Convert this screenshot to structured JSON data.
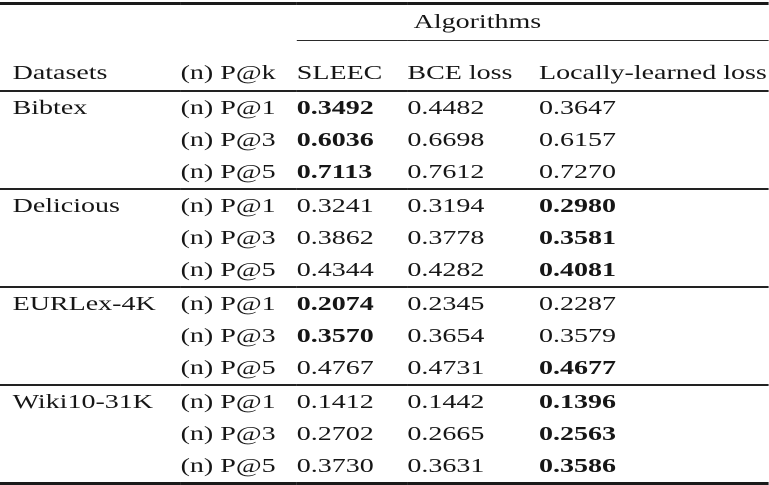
{
  "page": {
    "background_color": "#ffffff",
    "text_color": "#161616",
    "rule_color": "#1a1a1a"
  },
  "table": {
    "group_header": "Algorithms",
    "columns": [
      "Datasets",
      "(n) P@k",
      "SLEEC",
      "BCE loss",
      "Locally-learned loss"
    ],
    "groups": [
      {
        "dataset": "Bibtex",
        "rows": [
          {
            "metric": "(n) P@1",
            "values": [
              {
                "v": "0.3492",
                "b": true
              },
              {
                "v": "0.4482",
                "b": false
              },
              {
                "v": "0.3647",
                "b": false
              }
            ]
          },
          {
            "metric": "(n) P@3",
            "values": [
              {
                "v": "0.6036",
                "b": true
              },
              {
                "v": "0.6698",
                "b": false
              },
              {
                "v": "0.6157",
                "b": false
              }
            ]
          },
          {
            "metric": "(n) P@5",
            "values": [
              {
                "v": "0.7113",
                "b": true
              },
              {
                "v": "0.7612",
                "b": false
              },
              {
                "v": "0.7270",
                "b": false
              }
            ]
          }
        ]
      },
      {
        "dataset": "Delicious",
        "rows": [
          {
            "metric": "(n) P@1",
            "values": [
              {
                "v": "0.3241",
                "b": false
              },
              {
                "v": "0.3194",
                "b": false
              },
              {
                "v": "0.2980",
                "b": true
              }
            ]
          },
          {
            "metric": "(n) P@3",
            "values": [
              {
                "v": "0.3862",
                "b": false
              },
              {
                "v": "0.3778",
                "b": false
              },
              {
                "v": "0.3581",
                "b": true
              }
            ]
          },
          {
            "metric": "(n) P@5",
            "values": [
              {
                "v": "0.4344",
                "b": false
              },
              {
                "v": "0.4282",
                "b": false
              },
              {
                "v": "0.4081",
                "b": true
              }
            ]
          }
        ]
      },
      {
        "dataset": "EURLex-4K",
        "rows": [
          {
            "metric": "(n) P@1",
            "values": [
              {
                "v": "0.2074",
                "b": true
              },
              {
                "v": "0.2345",
                "b": false
              },
              {
                "v": "0.2287",
                "b": false
              }
            ]
          },
          {
            "metric": "(n) P@3",
            "values": [
              {
                "v": "0.3570",
                "b": true
              },
              {
                "v": "0.3654",
                "b": false
              },
              {
                "v": "0.3579",
                "b": false
              }
            ]
          },
          {
            "metric": "(n) P@5",
            "values": [
              {
                "v": "0.4767",
                "b": false
              },
              {
                "v": "0.4731",
                "b": false
              },
              {
                "v": "0.4677",
                "b": true
              }
            ]
          }
        ]
      },
      {
        "dataset": "Wiki10-31K",
        "rows": [
          {
            "metric": "(n) P@1",
            "values": [
              {
                "v": "0.1412",
                "b": false
              },
              {
                "v": "0.1442",
                "b": false
              },
              {
                "v": "0.1396",
                "b": true
              }
            ]
          },
          {
            "metric": "(n) P@3",
            "values": [
              {
                "v": "0.2702",
                "b": false
              },
              {
                "v": "0.2665",
                "b": false
              },
              {
                "v": "0.2563",
                "b": true
              }
            ]
          },
          {
            "metric": "(n) P@5",
            "values": [
              {
                "v": "0.3730",
                "b": false
              },
              {
                "v": "0.3631",
                "b": false
              },
              {
                "v": "0.3586",
                "b": true
              }
            ]
          }
        ]
      }
    ]
  }
}
